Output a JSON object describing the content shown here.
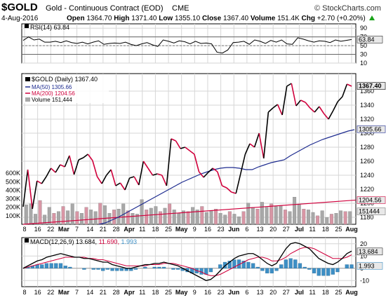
{
  "header": {
    "symbol": "$GOLD",
    "name": "Gold - Continuous Contract (EOD)",
    "exchange": "CME",
    "copyright": "© StockCharts.com",
    "date": "4-Aug-2016",
    "open_label": "Open",
    "open": "1364.70",
    "high_label": "High",
    "high": "1371.40",
    "low_label": "Low",
    "low": "1355.10",
    "close_label": "Close",
    "close": "1367.40",
    "volume_label": "Volume",
    "volume": "151.4K",
    "chg_label": "Chg",
    "chg": "+2.70 (+0.20%)",
    "chg_icon": "up-triangle-icon"
  },
  "colors": {
    "price_up": "#000000",
    "price_down": "#d0003c",
    "ma50": "#1d2b8f",
    "ma200": "#d0003c",
    "volume_up": "#a8a8a8",
    "volume_down": "#d896a5",
    "macd_hist": "#3d8fc5",
    "grid": "#d6d6d6",
    "tag_bg": "#e8e8e8"
  },
  "x_axis_labels": [
    "8",
    "16",
    "22",
    "Mar",
    "7",
    "14",
    "21",
    "28",
    "Apr",
    "11",
    "18",
    "25",
    "May",
    "9",
    "16",
    "23",
    "Jun",
    "6",
    "13",
    "20",
    "27",
    "Jul",
    "11",
    "18",
    "25",
    "Aug"
  ],
  "chart_data": [
    {
      "type": "line",
      "panel": "rsi",
      "legend": "RSI(14) 63.84",
      "last_value_tag": "63.84",
      "ylim": [
        10,
        100
      ],
      "y_ticks": [
        "90",
        "70",
        "50",
        "30",
        "10"
      ],
      "reference_lines": [
        70,
        50,
        30
      ],
      "values": [
        62,
        70,
        63,
        65,
        58,
        58,
        60,
        57,
        61,
        57,
        55,
        58,
        54,
        58,
        61,
        53,
        55,
        56,
        55,
        58,
        53,
        50,
        54,
        57,
        52,
        48,
        63,
        60,
        56,
        61,
        59,
        54,
        60,
        55,
        56,
        54,
        35,
        33,
        40,
        57,
        58,
        60,
        53,
        63,
        60,
        55,
        62,
        58,
        63,
        54,
        53,
        68,
        65,
        61,
        58,
        61,
        60,
        57,
        63,
        60,
        62,
        64
      ]
    },
    {
      "type": "line",
      "panel": "price",
      "title": "$GOLD (Daily) 1367.40",
      "ylim": [
        1170,
        1385
      ],
      "y_ticks": [
        "1360",
        "1340",
        "1320",
        "1300",
        "1280",
        "1260",
        "1240",
        "1220",
        "1200",
        "1180"
      ],
      "series": [
        {
          "name": "$GOLD (Daily) 1367.40",
          "values": [
            1195,
            1248,
            1192,
            1232,
            1228,
            1238,
            1250,
            1244,
            1255,
            1252,
            1268,
            1241,
            1262,
            1265,
            1270,
            1261,
            1238,
            1228,
            1240,
            1248,
            1225,
            1229,
            1219,
            1236,
            1238,
            1226,
            1260,
            1250,
            1240,
            1242,
            1240,
            1225,
            1292,
            1289,
            1278,
            1280,
            1275,
            1270,
            1245,
            1237,
            1244,
            1250,
            1245,
            1225,
            1222,
            1216,
            1214,
            1242,
            1270,
            1285,
            1280,
            1300,
            1264,
            1330,
            1336,
            1341,
            1326,
            1367,
            1371,
            1339,
            1347,
            1344,
            1336,
            1330,
            1338,
            1328,
            1320,
            1332,
            1345,
            1352,
            1370,
            1367
          ],
          "last_value_tag": "1367.40"
        },
        {
          "name": "MA(50) 1305.66",
          "values": [
            1170,
            1172,
            1176,
            1180,
            1185,
            1190,
            1195,
            1200,
            1205,
            1210,
            1215,
            1220,
            1225,
            1230,
            1234,
            1238,
            1242,
            1245,
            1248,
            1250,
            1251,
            1251,
            1250,
            1248,
            1248,
            1252,
            1255,
            1258,
            1260,
            1262,
            1268,
            1273,
            1278,
            1283,
            1287,
            1291,
            1294,
            1297,
            1300,
            1303,
            1305
          ],
          "last_value_tag": "1305.66"
        },
        {
          "name": "MA(200) 1204.56",
          "last_value_tag": "1204.56"
        }
      ]
    },
    {
      "type": "bar",
      "panel": "volume",
      "series_name": "Volume 151,444",
      "y_ticks": [
        "600K",
        "500K",
        "400K",
        "300K",
        "200K",
        "100K"
      ],
      "last_value_tag": "151444",
      "values": [
        230,
        240,
        120,
        280,
        110,
        200,
        130,
        150,
        210,
        160,
        240,
        150,
        130,
        200,
        170,
        150,
        250,
        220,
        130,
        170,
        180,
        240,
        160,
        130,
        120,
        290,
        170,
        190,
        210,
        150,
        190,
        240,
        170,
        130,
        160,
        150,
        200,
        170,
        210,
        140,
        160,
        180,
        130,
        110,
        150,
        120,
        90,
        150,
        250,
        200,
        180,
        260,
        200,
        240,
        210,
        220,
        170,
        150,
        320,
        230,
        180,
        170,
        140,
        100,
        160,
        80,
        120,
        130,
        160,
        150,
        150
      ],
      "down_days": [
        3,
        6,
        8,
        11,
        13,
        16,
        19,
        22,
        26,
        29,
        31,
        35,
        38,
        41,
        44,
        47,
        50,
        53,
        56,
        60,
        63,
        66,
        69,
        72,
        75,
        78,
        81,
        84,
        87,
        90,
        93,
        96,
        99,
        102,
        105,
        108,
        111,
        114,
        117,
        121,
        125
      ]
    },
    {
      "type": "line",
      "panel": "macd",
      "legend": "MACD(12,26,9) 13.684, 11.690, 1.993",
      "macd_label": "MACD(12,26,9) 13.684,",
      "signal_label": "11.690,",
      "hist_label": "1.993",
      "last_value_tags": [
        "13.684",
        "1.993"
      ],
      "ylim": [
        -15,
        25
      ],
      "y_ticks": [
        "20",
        "10",
        "0",
        "-10"
      ],
      "macd": [
        0,
        2,
        4,
        6,
        7,
        9,
        10,
        11,
        12,
        11,
        10,
        9,
        9,
        8,
        8,
        7,
        6,
        5,
        5,
        3,
        2,
        1,
        0,
        0,
        1,
        2,
        3,
        3,
        4,
        4,
        5,
        4,
        3,
        2,
        0,
        -2,
        -4,
        -6,
        -8,
        -10,
        -9,
        -6,
        -2,
        2,
        5,
        8,
        10,
        11,
        12,
        12,
        10,
        7,
        4,
        2,
        4,
        10,
        16,
        20,
        21,
        20,
        18,
        16,
        12,
        8,
        6,
        4,
        3,
        5,
        8,
        12,
        14
      ],
      "signal": [
        0,
        1,
        2,
        3,
        4,
        5,
        6,
        7,
        8,
        9,
        9,
        9,
        9,
        9,
        8,
        8,
        7,
        7,
        6,
        5,
        4,
        3,
        2,
        2,
        2,
        2,
        2,
        3,
        3,
        3,
        4,
        4,
        4,
        3,
        2,
        1,
        0,
        -2,
        -3,
        -5,
        -6,
        -6,
        -5,
        -3,
        -1,
        1,
        3,
        5,
        7,
        8,
        9,
        9,
        8,
        6,
        6,
        7,
        9,
        12,
        14,
        16,
        17,
        17,
        16,
        14,
        12,
        10,
        8,
        8,
        8,
        9,
        11
      ]
    }
  ]
}
